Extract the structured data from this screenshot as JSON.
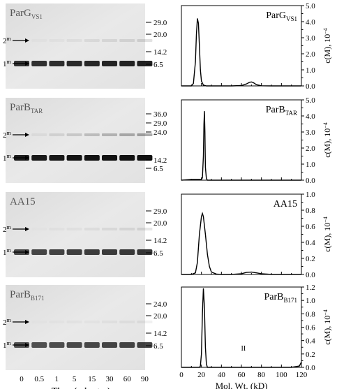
{
  "figure": {
    "gel_x_label": "Time (minutes)",
    "time_points": [
      "0",
      "0.5",
      "1",
      "5",
      "15",
      "30",
      "60",
      "90"
    ],
    "dimer_label": "2",
    "monomer_label": "1",
    "oligomer_superscript": "m"
  },
  "panels": [
    {
      "gel_name": "ParG",
      "gel_sub": "VS1",
      "chart_name": "ParG",
      "chart_sub": "VS1",
      "markers": [
        "29.0",
        "20.0",
        "14.2",
        "6.5"
      ],
      "dimer_intensity": 0.12,
      "monomer_intensity": 0.85,
      "ylim": [
        0,
        5.0
      ],
      "yticks": [
        "0.0",
        "1.0",
        "2.0",
        "3.0",
        "4.0",
        "5.0"
      ],
      "yaxis_label": "c(M),  10",
      "yaxis_exp": "−4"
    },
    {
      "gel_name": "ParB",
      "gel_sub": "TAR",
      "chart_name": "ParB",
      "chart_sub": "TAR",
      "markers": [
        "36.0",
        "29.0",
        "24.0",
        "14.2",
        "6.5"
      ],
      "dimer_intensity": 0.35,
      "monomer_intensity": 0.95,
      "ylim": [
        0,
        5.0
      ],
      "yticks": [
        "0.0",
        "1.0",
        "2.0",
        "3.0",
        "4.0",
        "5.0"
      ],
      "yaxis_label": "c(M),  10",
      "yaxis_exp": "−4"
    },
    {
      "gel_name": "AA15",
      "gel_sub": "",
      "chart_name": "AA15",
      "chart_sub": "",
      "markers": [
        "29.0",
        "20.0",
        "14.2",
        "6.5"
      ],
      "dimer_intensity": 0.1,
      "monomer_intensity": 0.75,
      "ylim": [
        0,
        1.0
      ],
      "yticks": [
        "0.0",
        "0.2",
        "0.4",
        "0.6",
        "0.8",
        "1.0"
      ],
      "yaxis_label": "c(M),  10",
      "yaxis_exp": "−4"
    },
    {
      "gel_name": "ParB",
      "gel_sub": "B171",
      "chart_name": "ParB",
      "chart_sub": "B171",
      "markers": [
        "24.0",
        "20.0",
        "14.2",
        "6.5"
      ],
      "dimer_intensity": 0.06,
      "monomer_intensity": 0.7,
      "ylim": [
        0,
        1.2
      ],
      "yticks": [
        "0.0",
        "0.2",
        "0.4",
        "0.6",
        "0.8",
        "1.0",
        "1.2"
      ],
      "yaxis_label": "c(M),  10",
      "yaxis_exp": "−4",
      "annotation": "II"
    }
  ],
  "chart_data": [
    {
      "type": "line",
      "xlabel": "Mol. Wt. (kD)",
      "xlim": [
        0,
        120
      ],
      "ylim": [
        0,
        5.0
      ],
      "x": [
        0,
        10,
        12,
        14,
        15,
        16,
        17,
        18,
        19,
        20,
        22,
        25,
        30,
        40,
        50,
        60,
        65,
        68,
        70,
        72,
        75,
        80,
        90,
        100,
        110,
        120
      ],
      "series": [
        {
          "values": [
            0,
            0,
            0.15,
            1.5,
            3.2,
            4.2,
            3.9,
            2.5,
            1.0,
            0.3,
            0.05,
            0,
            0,
            0,
            0,
            0.02,
            0.12,
            0.22,
            0.25,
            0.2,
            0.08,
            0.01,
            0,
            0,
            0,
            0
          ]
        }
      ]
    },
    {
      "type": "line",
      "xlabel": "Mol. Wt. (kD)",
      "xlim": [
        0,
        120
      ],
      "ylim": [
        0,
        5.0
      ],
      "x": [
        0,
        10,
        20,
        21,
        22,
        22.5,
        23,
        23.5,
        24,
        25,
        26,
        30,
        40,
        60,
        80,
        100,
        120
      ],
      "series": [
        {
          "values": [
            0,
            0.05,
            0.05,
            0.15,
            1.5,
            3.5,
            4.3,
            3.0,
            0.8,
            0.1,
            0,
            0,
            0,
            0,
            0,
            0,
            0
          ]
        }
      ]
    },
    {
      "type": "line",
      "xlabel": "Mol. Wt. (kD)",
      "xlim": [
        0,
        120
      ],
      "ylim": [
        0,
        1.0
      ],
      "x": [
        0,
        10,
        14,
        16,
        18,
        20,
        21,
        22,
        24,
        26,
        28,
        30,
        35,
        40,
        50,
        60,
        65,
        70,
        75,
        80,
        90,
        100,
        120
      ],
      "series": [
        {
          "values": [
            0,
            0,
            0.02,
            0.15,
            0.5,
            0.72,
            0.76,
            0.72,
            0.5,
            0.25,
            0.1,
            0.03,
            0.005,
            0,
            0,
            0.01,
            0.025,
            0.03,
            0.02,
            0.01,
            0,
            0,
            0
          ]
        }
      ]
    },
    {
      "type": "line",
      "xlabel": "Mol. Wt. (kD)",
      "xlim": [
        0,
        120
      ],
      "ylim": [
        0,
        1.2
      ],
      "xticks": [
        "0",
        "20",
        "40",
        "60",
        "80",
        "100",
        "120"
      ],
      "x": [
        0,
        10,
        18,
        19,
        20,
        21,
        22,
        23,
        24,
        25,
        26,
        30,
        40,
        60,
        80,
        100,
        110,
        118,
        120
      ],
      "series": [
        {
          "values": [
            0,
            0,
            0,
            0.02,
            0.2,
            0.8,
            1.18,
            0.9,
            0.3,
            0.05,
            0,
            0,
            0,
            0,
            0,
            0,
            0,
            0.02,
            0.08
          ]
        }
      ]
    }
  ]
}
